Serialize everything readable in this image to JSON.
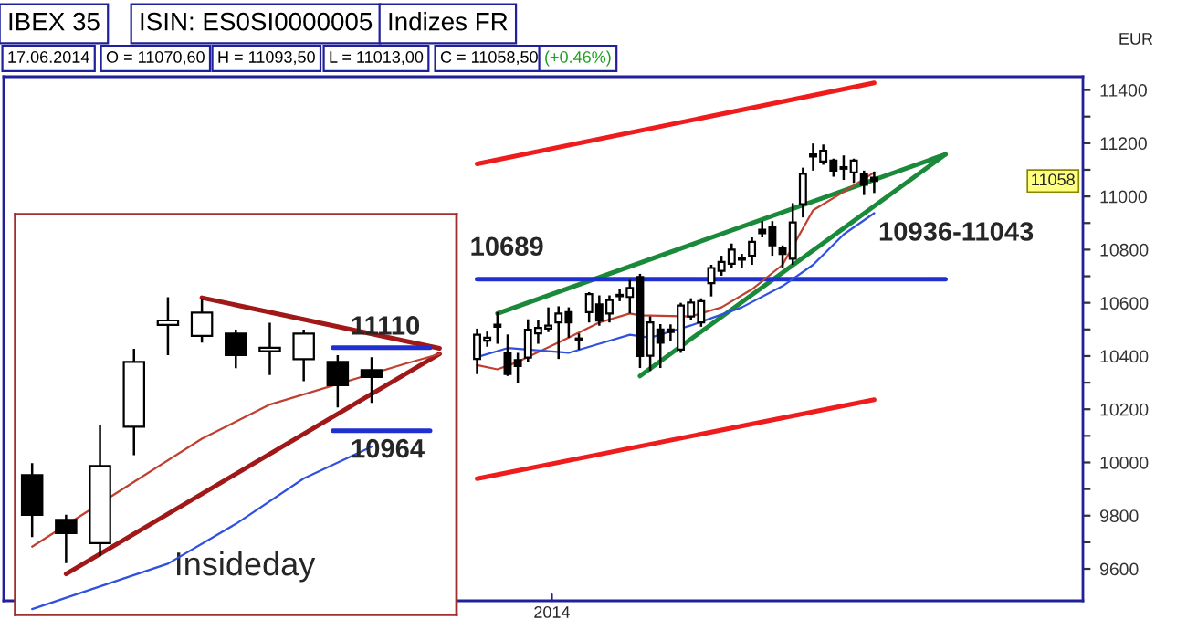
{
  "chart_data": [
    {
      "type": "candlestick",
      "title": "IBEX 35",
      "ylabel": "EUR",
      "annotations": [
        "ISIN: ES0SI0000005",
        "Indizes FR",
        "17.06.2014",
        "O = 11070,60",
        "H = 11093,50",
        "L = 11013,00",
        "C = 11058,50",
        "(+0.46%)",
        "10936-11043",
        "2014",
        "10689",
        {
          "text": "11058",
          "y": 11058
        }
      ],
      "categories": [
        null,
        null,
        null,
        null,
        null,
        null,
        null,
        null,
        null,
        null,
        null,
        null,
        null,
        null,
        null,
        null,
        null,
        null,
        null,
        null,
        null,
        null,
        null,
        null,
        null,
        null,
        null,
        null,
        null,
        null,
        null,
        null,
        null,
        null,
        null,
        null,
        null,
        null,
        null,
        null,
        null,
        null,
        null,
        null,
        null,
        null,
        null,
        null,
        null,
        null,
        null,
        null,
        null,
        null,
        null,
        null,
        null,
        null,
        null,
        null,
        null,
        null,
        null,
        null,
        null,
        null,
        null,
        null,
        null,
        null,
        null,
        null,
        null,
        null,
        null,
        null,
        null,
        null,
        null,
        null,
        null,
        null,
        null,
        null,
        null,
        null,
        null,
        null,
        null,
        null,
        null,
        null,
        null,
        null,
        null,
        null,
        null,
        null,
        null,
        null,
        null,
        null,
        null,
        null,
        null,
        null
      ],
      "ohlc": [
        null,
        null,
        null,
        null,
        null,
        null,
        null,
        null,
        null,
        null,
        null,
        null,
        null,
        null,
        null,
        null,
        null,
        null,
        null,
        null,
        null,
        null,
        null,
        null,
        null,
        null,
        null,
        null,
        null,
        null,
        null,
        null,
        null,
        null,
        null,
        null,
        null,
        null,
        null,
        null,
        null,
        null,
        null,
        null,
        null,
        null,
        [
          10389,
          10503,
          10332,
          10480
        ],
        [
          10458,
          10492,
          10435,
          10469
        ],
        [
          10510,
          10565,
          10446,
          10518
        ],
        [
          10412,
          10481,
          10325,
          10332
        ],
        [
          10385,
          10412,
          10298,
          10362
        ],
        [
          10394,
          10538,
          10378,
          10499
        ],
        [
          10485,
          10535,
          10446,
          10506
        ],
        [
          10503,
          10583,
          10490,
          10514
        ],
        [
          10526,
          10587,
          10389,
          10560
        ],
        [
          10565,
          10583,
          10469,
          10526
        ],
        [
          10462,
          10485,
          10424,
          10466
        ],
        [
          10565,
          10640,
          10526,
          10633
        ],
        [
          10594,
          10628,
          10514,
          10533
        ],
        [
          10560,
          10628,
          10526,
          10610
        ],
        [
          10625,
          10651,
          10606,
          10630
        ],
        [
          10622,
          10686,
          10560,
          10656
        ],
        [
          10697,
          10709,
          10355,
          10400
        ],
        [
          10401,
          10549,
          10344,
          10526
        ],
        [
          10500,
          10520,
          10355,
          10450
        ],
        [
          10490,
          10519,
          10457,
          10500
        ],
        [
          10424,
          10600,
          10412,
          10590
        ],
        [
          10549,
          10617,
          10537,
          10601
        ],
        [
          10526,
          10617,
          10510,
          10606
        ],
        [
          10674,
          10743,
          10624,
          10731
        ],
        [
          10720,
          10777,
          10702,
          10754
        ],
        [
          10747,
          10823,
          10731,
          10800
        ],
        [
          10762,
          10784,
          10731,
          10770
        ],
        [
          10777,
          10846,
          10743,
          10829
        ],
        [
          10875,
          10907,
          10846,
          10862
        ],
        [
          10886,
          10907,
          10777,
          10816
        ],
        [
          10807,
          10816,
          10731,
          10784
        ],
        [
          10766,
          10975,
          10743,
          10902
        ],
        [
          10971,
          11108,
          10921,
          11085
        ],
        [
          11150,
          11199,
          11097,
          11158
        ],
        [
          11131,
          11195,
          11119,
          11172
        ],
        [
          11135,
          11142,
          11074,
          11097
        ],
        [
          11104,
          11154,
          11062,
          11110
        ],
        [
          11090,
          11142,
          11051,
          11135
        ],
        [
          11085,
          11097,
          11005,
          11044
        ],
        [
          11070.6,
          11093.5,
          11013,
          11058.5
        ],
        null,
        null,
        null,
        null,
        null,
        null,
        null,
        null,
        null,
        null,
        null,
        null,
        null,
        null,
        null,
        null,
        null,
        null,
        null,
        null
      ],
      "series": [
        {
          "type": "line",
          "color": "#ee1c1c",
          "values": [
            null,
            null,
            null,
            null,
            null,
            null,
            null,
            null,
            null,
            null,
            null,
            null,
            null,
            null,
            null,
            null,
            null,
            null,
            null,
            null,
            null,
            null,
            null,
            null,
            null,
            null,
            null,
            null,
            null,
            null,
            null,
            null,
            null,
            null,
            null,
            null,
            null,
            null,
            null,
            null,
            null,
            null,
            null,
            null,
            null,
            null,
            11122,
            null,
            null,
            null,
            null,
            null,
            null,
            null,
            null,
            null,
            null,
            null,
            null,
            null,
            null,
            null,
            null,
            null,
            null,
            null,
            null,
            null,
            null,
            null,
            null,
            null,
            null,
            null,
            null,
            null,
            null,
            null,
            null,
            null,
            null,
            null,
            null,
            null,
            null,
            11427,
            null,
            null,
            null,
            null,
            null,
            null,
            null,
            null,
            null,
            null,
            null,
            null,
            null,
            null,
            null,
            null,
            null,
            null,
            null,
            null
          ]
        },
        {
          "type": "line",
          "color": "#ee1c1c",
          "values": [
            null,
            null,
            null,
            null,
            null,
            null,
            null,
            null,
            null,
            null,
            null,
            null,
            null,
            null,
            null,
            null,
            null,
            null,
            null,
            null,
            null,
            null,
            null,
            null,
            null,
            null,
            null,
            null,
            null,
            null,
            null,
            null,
            null,
            null,
            null,
            null,
            null,
            null,
            null,
            null,
            null,
            null,
            null,
            null,
            null,
            null,
            9939,
            null,
            null,
            null,
            null,
            null,
            null,
            null,
            null,
            null,
            null,
            null,
            null,
            null,
            null,
            null,
            null,
            null,
            null,
            null,
            null,
            null,
            null,
            null,
            null,
            null,
            null,
            null,
            null,
            null,
            null,
            null,
            null,
            null,
            null,
            null,
            null,
            null,
            null,
            10236,
            null,
            null,
            null,
            null,
            null,
            null,
            null,
            null,
            null,
            null,
            null,
            null,
            null,
            null,
            null,
            null,
            null,
            null,
            null,
            null
          ]
        },
        {
          "type": "line",
          "color": "#1a8a3a",
          "values": [
            null,
            null,
            null,
            null,
            null,
            null,
            null,
            null,
            null,
            null,
            null,
            null,
            null,
            null,
            null,
            null,
            null,
            null,
            null,
            null,
            null,
            null,
            null,
            null,
            null,
            null,
            null,
            null,
            null,
            null,
            null,
            null,
            null,
            null,
            null,
            null,
            null,
            null,
            null,
            null,
            null,
            null,
            null,
            null,
            null,
            null,
            null,
            null,
            10560,
            null,
            null,
            null,
            null,
            null,
            null,
            null,
            null,
            null,
            null,
            null,
            null,
            null,
            null,
            null,
            null,
            null,
            null,
            null,
            null,
            null,
            null,
            null,
            null,
            null,
            null,
            null,
            null,
            null,
            null,
            null,
            null,
            null,
            null,
            null,
            null,
            null,
            null,
            null,
            null,
            null,
            null,
            null,
            11158,
            null,
            null,
            null,
            null,
            null,
            null,
            null,
            null,
            null,
            null,
            null,
            null,
            null
          ]
        },
        {
          "type": "line",
          "color": "#1a8a3a",
          "values": [
            null,
            null,
            null,
            null,
            null,
            null,
            null,
            null,
            null,
            null,
            null,
            null,
            null,
            null,
            null,
            null,
            null,
            null,
            null,
            null,
            null,
            null,
            null,
            null,
            null,
            null,
            null,
            null,
            null,
            null,
            null,
            null,
            null,
            null,
            null,
            null,
            null,
            null,
            null,
            null,
            null,
            null,
            null,
            null,
            null,
            null,
            null,
            null,
            null,
            null,
            null,
            null,
            null,
            null,
            null,
            null,
            null,
            null,
            null,
            null,
            null,
            null,
            10325,
            null,
            null,
            null,
            null,
            null,
            null,
            null,
            null,
            null,
            null,
            null,
            null,
            null,
            null,
            null,
            null,
            null,
            null,
            null,
            null,
            null,
            null,
            null,
            null,
            null,
            null,
            null,
            null,
            null,
            11158,
            null,
            null,
            null,
            null,
            null,
            null,
            null,
            null,
            null,
            null,
            null,
            null,
            null
          ]
        },
        {
          "type": "line",
          "color": "#2030d0",
          "values": [
            null,
            null,
            null,
            null,
            null,
            null,
            null,
            null,
            null,
            null,
            null,
            null,
            null,
            null,
            null,
            null,
            null,
            null,
            null,
            null,
            null,
            null,
            null,
            null,
            null,
            null,
            null,
            null,
            null,
            null,
            null,
            null,
            null,
            null,
            null,
            null,
            null,
            null,
            null,
            null,
            null,
            null,
            null,
            null,
            null,
            null,
            10689,
            null,
            null,
            null,
            null,
            null,
            null,
            null,
            null,
            null,
            null,
            null,
            null,
            null,
            null,
            null,
            null,
            null,
            null,
            null,
            null,
            null,
            null,
            null,
            null,
            null,
            null,
            null,
            null,
            null,
            null,
            null,
            null,
            null,
            null,
            null,
            null,
            null,
            null,
            null,
            null,
            null,
            null,
            null,
            null,
            null,
            10689,
            null,
            null,
            null,
            null,
            null,
            null,
            null,
            null,
            null,
            null,
            null,
            null,
            null
          ]
        },
        {
          "type": "line",
          "color": "#c04030",
          "values": [
            null,
            null,
            null,
            null,
            null,
            null,
            null,
            null,
            null,
            null,
            null,
            null,
            null,
            null,
            null,
            null,
            null,
            null,
            null,
            null,
            null,
            null,
            null,
            null,
            null,
            null,
            null,
            null,
            null,
            null,
            null,
            null,
            null,
            null,
            null,
            null,
            null,
            null,
            null,
            null,
            null,
            null,
            null,
            null,
            null,
            null,
            10366,
            null,
            10350,
            null,
            10378,
            null,
            null,
            null,
            null,
            10469,
            null,
            null,
            10526,
            null,
            null,
            10560,
            10553,
            null,
            null,
            null,
            null,
            10549,
            null,
            null,
            10583,
            null,
            null,
            10651,
            null,
            null,
            10743,
            null,
            null,
            10948,
            null,
            null,
            11017,
            null,
            null,
            11090,
            null,
            null,
            null,
            null,
            null,
            null,
            null,
            null,
            null,
            null,
            null,
            null,
            null,
            null,
            null,
            null,
            null,
            null,
            null,
            null
          ]
        },
        {
          "type": "line",
          "color": "#3050e0",
          "values": [
            null,
            null,
            null,
            null,
            null,
            null,
            null,
            null,
            null,
            null,
            null,
            null,
            null,
            null,
            null,
            null,
            null,
            null,
            null,
            null,
            null,
            null,
            null,
            null,
            null,
            null,
            null,
            null,
            null,
            null,
            null,
            null,
            null,
            null,
            null,
            null,
            null,
            null,
            null,
            null,
            null,
            null,
            null,
            null,
            null,
            null,
            10396,
            null,
            null,
            10430,
            null,
            null,
            null,
            null,
            null,
            10412,
            null,
            null,
            10446,
            null,
            null,
            10480,
            null,
            10469,
            null,
            null,
            null,
            10515,
            null,
            null,
            null,
            null,
            10583,
            null,
            null,
            null,
            10663,
            null,
            null,
            10743,
            null,
            null,
            10857,
            null,
            null,
            10937,
            null,
            null,
            null,
            null,
            null,
            null,
            null,
            null,
            null,
            null,
            null,
            null,
            null,
            null,
            null,
            null,
            null,
            null,
            null,
            null
          ]
        }
      ],
      "ylim": [
        9480,
        11450
      ],
      "yticks": [
        9600,
        {
          "value": 9700,
          "label": null
        },
        9800,
        {
          "value": 9900,
          "label": null
        },
        10000,
        {
          "value": 10100,
          "label": null
        },
        10200,
        {
          "value": 10300,
          "label": null
        },
        10400,
        {
          "value": 10500,
          "label": null
        },
        10600,
        {
          "value": 10700,
          "label": null
        },
        10800,
        {
          "value": 10900,
          "label": null
        },
        11000,
        {
          "value": 11100,
          "label": null
        },
        11200,
        {
          "value": 11300,
          "label": null
        },
        11400
      ]
    },
    {
      "type": "candlestick",
      "annotations": [
        "Insideday"
      ],
      "categories": [
        null,
        null,
        null,
        null,
        null,
        null,
        null,
        null,
        null,
        null,
        null,
        null,
        null
      ],
      "ohlc": [
        [
          10886,
          10907,
          10777,
          10816
        ],
        [
          10807,
          10816,
          10731,
          10784
        ],
        [
          10766,
          10975,
          10743,
          10902
        ],
        [
          10971,
          11108,
          10921,
          11085
        ],
        [
          11150,
          11199,
          11097,
          11158
        ],
        [
          11131,
          11195,
          11119,
          11172
        ],
        [
          11135,
          11142,
          11074,
          11097
        ],
        [
          11104,
          11154,
          11062,
          11110
        ],
        [
          11090,
          11142,
          11051,
          11135
        ],
        [
          11085,
          11097,
          11005,
          11044
        ],
        [
          11070.6,
          11093.5,
          11013,
          11058.5
        ],
        null,
        null
      ],
      "series": [
        {
          "type": "line",
          "color": "#a01818",
          "values": [
            null,
            10712,
            null,
            null,
            null,
            null,
            null,
            null,
            null,
            null,
            null,
            null,
            11099
          ]
        },
        {
          "type": "line",
          "color": "#a01818",
          "values": [
            null,
            null,
            null,
            null,
            null,
            11198,
            null,
            null,
            null,
            null,
            null,
            null,
            11109
          ]
        },
        {
          "type": "line",
          "color": "#c04030",
          "values": [
            10760,
            null,
            null,
            10874,
            null,
            10950,
            null,
            11010,
            null,
            null,
            null,
            11082,
            11099
          ]
        },
        {
          "type": "line",
          "color": "#3050e0",
          "values": [
            10650,
            null,
            null,
            null,
            10730,
            null,
            10800,
            null,
            10880,
            null,
            10936,
            null,
            null
          ]
        }
      ],
      "ref_lines": [
        {
          "axis": "y",
          "value": 11110,
          "label": "11110",
          "color": "#2030d0"
        },
        {
          "axis": "y",
          "value": 10964,
          "label": "10964",
          "color": "#2030d0"
        }
      ],
      "ylim": [
        10640,
        11345
      ]
    }
  ]
}
